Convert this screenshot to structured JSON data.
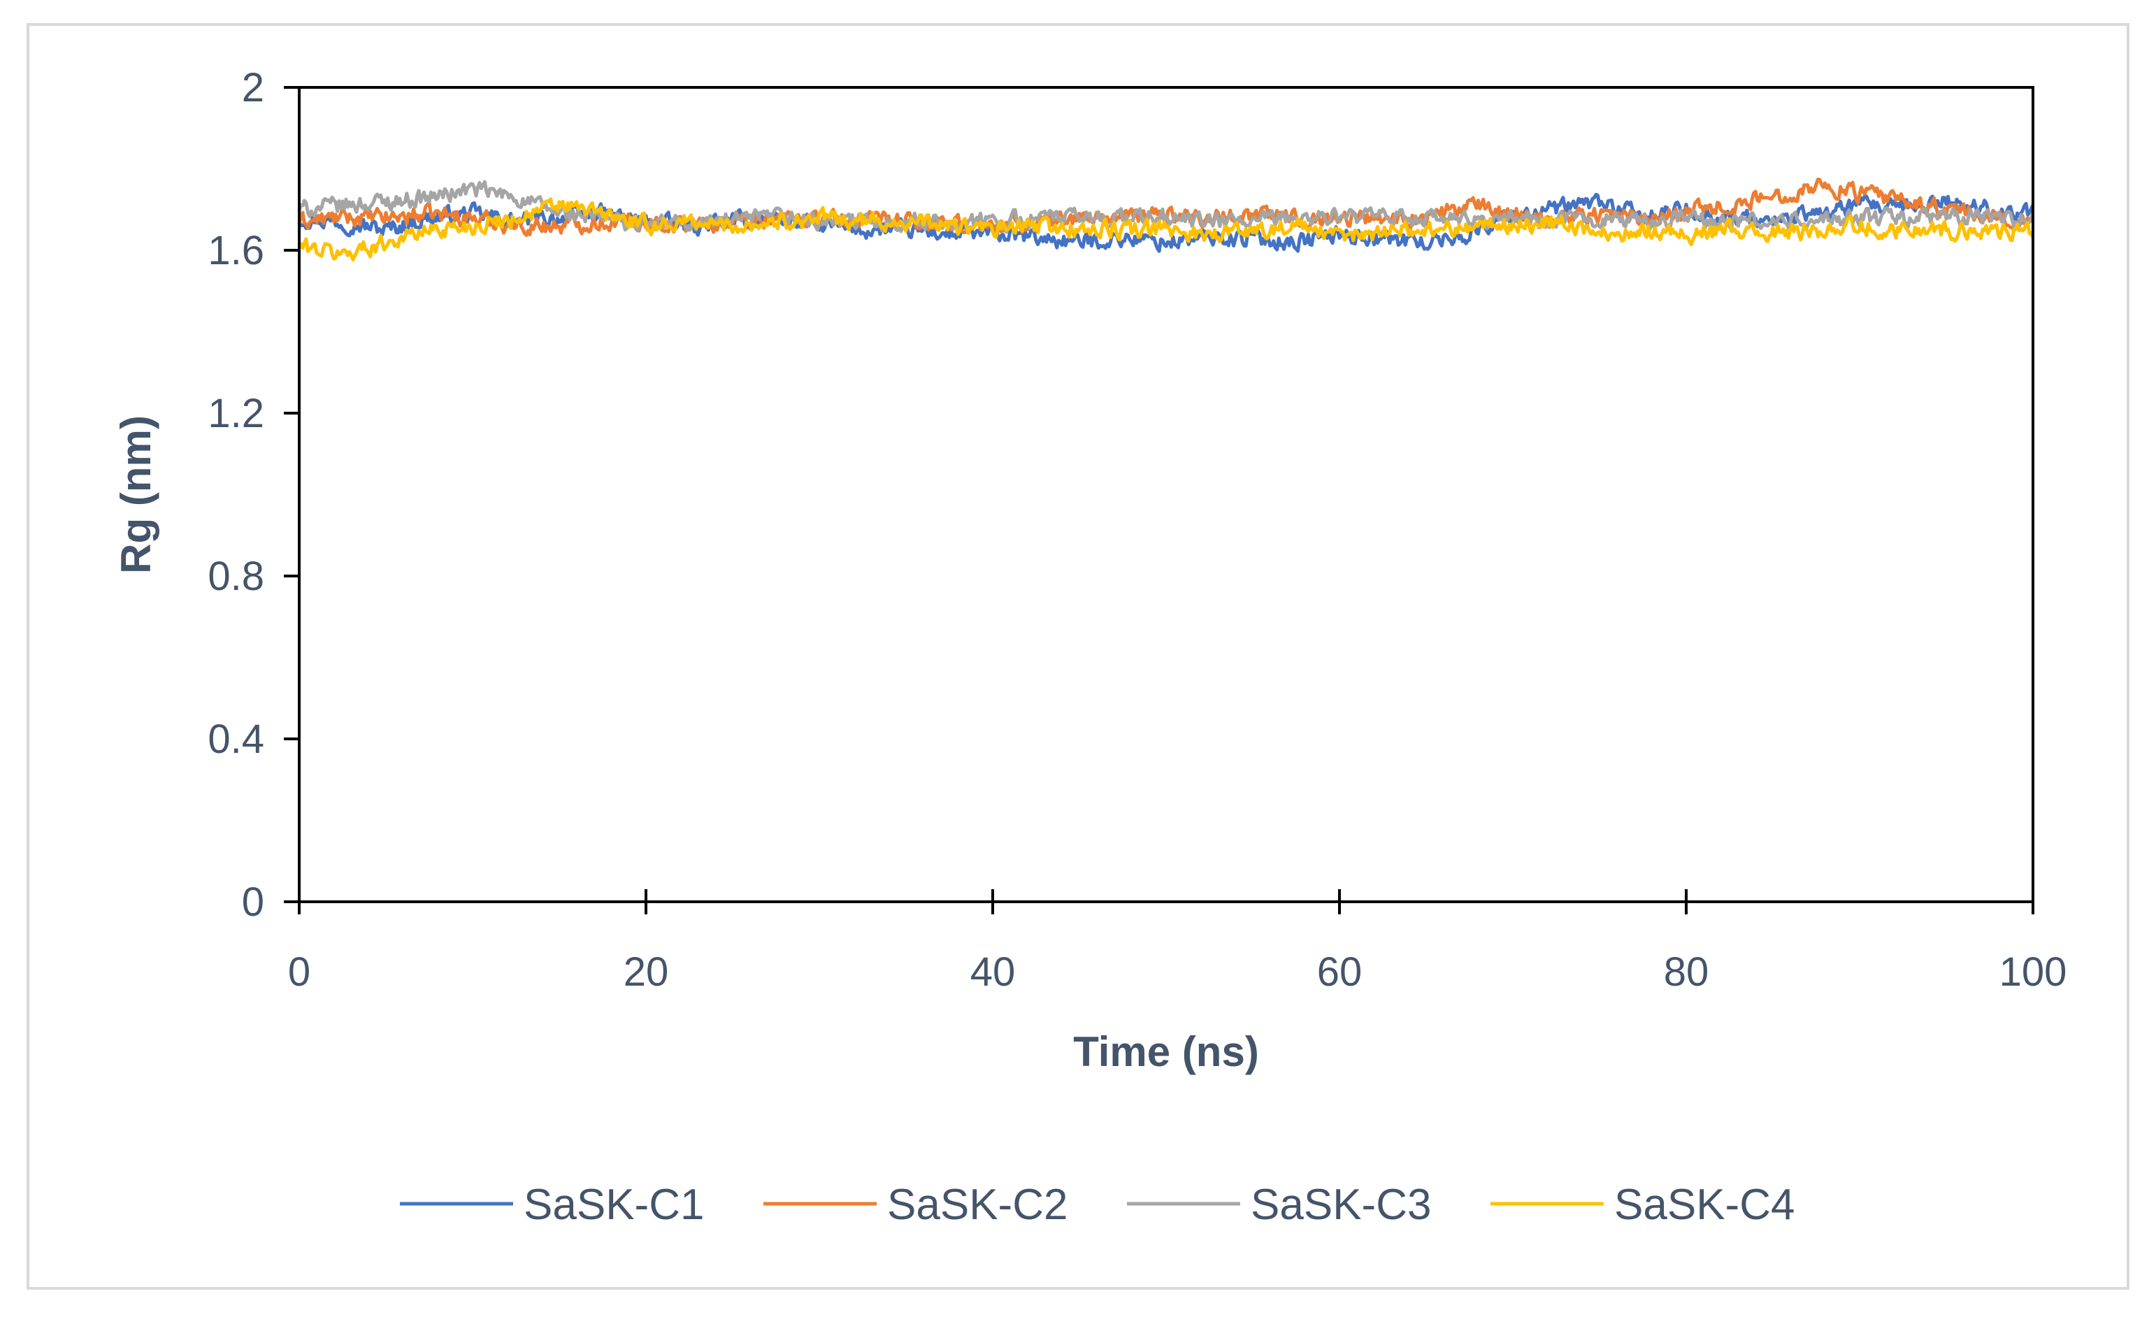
{
  "chart_data": {
    "type": "line",
    "title": "",
    "xlabel": "Time (ns)",
    "ylabel": "Rg (nm)",
    "xlim": [
      0,
      100
    ],
    "ylim": [
      0,
      2
    ],
    "xticks": [
      0,
      20,
      40,
      60,
      80,
      100
    ],
    "yticks": [
      0,
      0.4,
      0.8,
      1.2,
      1.6,
      2
    ],
    "xtick_labels": [
      "0",
      "20",
      "40",
      "60",
      "80",
      "100"
    ],
    "ytick_labels": [
      "0",
      "0.4",
      "0.8",
      "1.2",
      "1.6",
      "2"
    ],
    "grid": false,
    "legend_position": "bottom",
    "x": [
      0,
      2.5,
      5,
      7.5,
      10,
      12.5,
      15,
      17.5,
      20,
      22.5,
      25,
      27.5,
      30,
      32.5,
      35,
      37.5,
      40,
      42.5,
      45,
      47.5,
      50,
      52.5,
      55,
      57.5,
      60,
      62.5,
      65,
      67.5,
      70,
      72.5,
      75,
      77.5,
      80,
      82.5,
      85,
      87.5,
      90,
      92.5,
      95,
      97.5,
      100
    ],
    "series": [
      {
        "name": "SaSK-C1",
        "color": "#4472C4",
        "values": [
          1.68,
          1.67,
          1.65,
          1.68,
          1.69,
          1.67,
          1.68,
          1.69,
          1.67,
          1.66,
          1.67,
          1.68,
          1.66,
          1.65,
          1.65,
          1.64,
          1.64,
          1.63,
          1.62,
          1.63,
          1.62,
          1.63,
          1.63,
          1.62,
          1.64,
          1.63,
          1.62,
          1.64,
          1.69,
          1.7,
          1.72,
          1.68,
          1.7,
          1.68,
          1.67,
          1.69,
          1.71,
          1.7,
          1.72,
          1.7,
          1.69
        ]
      },
      {
        "name": "SaSK-C2",
        "color": "#ED7D31",
        "values": [
          1.67,
          1.68,
          1.68,
          1.69,
          1.68,
          1.66,
          1.66,
          1.67,
          1.67,
          1.66,
          1.67,
          1.68,
          1.68,
          1.67,
          1.67,
          1.66,
          1.66,
          1.67,
          1.68,
          1.68,
          1.69,
          1.68,
          1.69,
          1.68,
          1.68,
          1.68,
          1.68,
          1.71,
          1.69,
          1.68,
          1.69,
          1.68,
          1.7,
          1.71,
          1.73,
          1.76,
          1.74,
          1.72,
          1.7,
          1.68,
          1.67
        ]
      },
      {
        "name": "SaSK-C3",
        "color": "#A5A5A5",
        "values": [
          1.7,
          1.71,
          1.72,
          1.73,
          1.75,
          1.73,
          1.69,
          1.68,
          1.66,
          1.67,
          1.67,
          1.68,
          1.67,
          1.67,
          1.67,
          1.67,
          1.67,
          1.68,
          1.68,
          1.68,
          1.68,
          1.67,
          1.67,
          1.68,
          1.68,
          1.68,
          1.68,
          1.67,
          1.68,
          1.67,
          1.68,
          1.67,
          1.68,
          1.67,
          1.67,
          1.67,
          1.68,
          1.68,
          1.68,
          1.68,
          1.68
        ]
      },
      {
        "name": "SaSK-C4",
        "color": "#FFC000",
        "values": [
          1.61,
          1.59,
          1.62,
          1.65,
          1.66,
          1.68,
          1.71,
          1.69,
          1.66,
          1.67,
          1.66,
          1.67,
          1.68,
          1.67,
          1.67,
          1.66,
          1.65,
          1.66,
          1.65,
          1.65,
          1.65,
          1.64,
          1.65,
          1.66,
          1.63,
          1.65,
          1.65,
          1.66,
          1.66,
          1.67,
          1.64,
          1.65,
          1.64,
          1.65,
          1.64,
          1.65,
          1.66,
          1.65,
          1.65,
          1.65,
          1.64
        ]
      }
    ],
    "axis_color": "#000000",
    "text_color": "#44546A",
    "frame_border_color": "#D9D9D9"
  }
}
